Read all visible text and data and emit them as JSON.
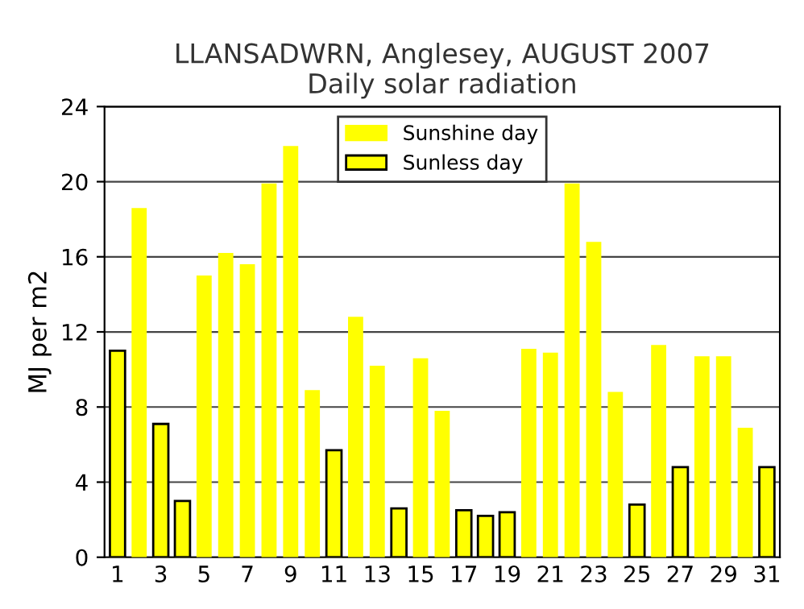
{
  "chart_data": {
    "type": "bar",
    "title": "LLANSADWRN, Anglesey, AUGUST 2007\nDaily solar radiation",
    "ylabel": "MJ per m2",
    "categories": [
      "1",
      null,
      "3",
      null,
      "5",
      null,
      "7",
      null,
      "9",
      null,
      "11",
      null,
      "13",
      null,
      "15",
      null,
      "17",
      null,
      "19",
      null,
      "21",
      null,
      "23",
      null,
      "25",
      null,
      "27",
      null,
      "29",
      null,
      "31"
    ],
    "series": [
      {
        "name": "Sunshine day",
        "color": "#ffff00",
        "values": [
          null,
          18.6,
          null,
          null,
          15.0,
          16.2,
          15.6,
          19.9,
          21.9,
          8.9,
          null,
          12.8,
          10.2,
          null,
          10.6,
          7.8,
          null,
          null,
          null,
          11.1,
          10.9,
          19.9,
          16.8,
          8.8,
          null,
          11.3,
          null,
          10.7,
          10.7,
          6.9,
          null
        ]
      },
      {
        "name": "Sunless day",
        "color": "#ffff00",
        "values": [
          11.0,
          null,
          7.1,
          3.0,
          null,
          null,
          null,
          null,
          null,
          null,
          5.7,
          null,
          null,
          2.6,
          null,
          null,
          2.5,
          2.2,
          2.4,
          null,
          null,
          null,
          null,
          null,
          2.8,
          null,
          4.8,
          null,
          null,
          null,
          4.8
        ]
      }
    ],
    "ylim": [
      0,
      24
    ],
    "yticks": [
      0,
      4,
      8,
      12,
      16,
      20,
      24
    ],
    "grid": "y",
    "legend": "top"
  }
}
